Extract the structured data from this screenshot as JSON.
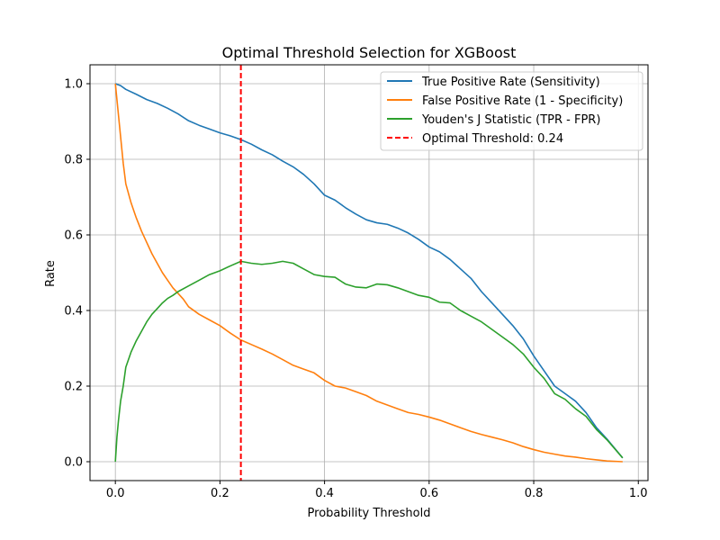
{
  "chart_data": {
    "type": "line",
    "title": "Optimal Threshold Selection for XGBoost",
    "xlabel": "Probability Threshold",
    "ylabel": "Rate",
    "xlim": [
      -0.0485,
      1.0185
    ],
    "ylim": [
      -0.05,
      1.05
    ],
    "xticks": [
      0.0,
      0.2,
      0.4,
      0.6,
      0.8,
      1.0
    ],
    "xtick_labels": [
      "0.0",
      "0.2",
      "0.4",
      "0.6",
      "0.8",
      "1.0"
    ],
    "yticks": [
      0.0,
      0.2,
      0.4,
      0.6,
      0.8,
      1.0
    ],
    "ytick_labels": [
      "0.0",
      "0.2",
      "0.4",
      "0.6",
      "0.8",
      "1.0"
    ],
    "grid": true,
    "legend_position": "top-right",
    "series": [
      {
        "name": "True Positive Rate (Sensitivity)",
        "color": "#1f77b4",
        "style": "solid",
        "x": [
          0.0,
          0.01,
          0.02,
          0.04,
          0.06,
          0.08,
          0.1,
          0.12,
          0.14,
          0.16,
          0.18,
          0.2,
          0.22,
          0.24,
          0.26,
          0.28,
          0.3,
          0.32,
          0.34,
          0.36,
          0.38,
          0.4,
          0.42,
          0.44,
          0.46,
          0.48,
          0.5,
          0.52,
          0.54,
          0.56,
          0.58,
          0.6,
          0.62,
          0.64,
          0.66,
          0.68,
          0.7,
          0.72,
          0.74,
          0.76,
          0.78,
          0.8,
          0.82,
          0.84,
          0.86,
          0.88,
          0.9,
          0.92,
          0.94,
          0.97
        ],
        "y": [
          1.0,
          0.995,
          0.985,
          0.972,
          0.958,
          0.948,
          0.935,
          0.92,
          0.902,
          0.89,
          0.88,
          0.87,
          0.862,
          0.852,
          0.84,
          0.825,
          0.812,
          0.795,
          0.78,
          0.76,
          0.735,
          0.705,
          0.692,
          0.672,
          0.655,
          0.64,
          0.632,
          0.628,
          0.618,
          0.605,
          0.588,
          0.568,
          0.555,
          0.535,
          0.51,
          0.485,
          0.45,
          0.42,
          0.39,
          0.36,
          0.325,
          0.28,
          0.24,
          0.2,
          0.18,
          0.16,
          0.13,
          0.09,
          0.06,
          0.01
        ]
      },
      {
        "name": "False Positive Rate (1 - Specificity)",
        "color": "#ff7f0e",
        "style": "solid",
        "x": [
          0.0,
          0.005,
          0.01,
          0.015,
          0.02,
          0.03,
          0.04,
          0.05,
          0.06,
          0.07,
          0.08,
          0.09,
          0.1,
          0.11,
          0.12,
          0.13,
          0.14,
          0.16,
          0.18,
          0.2,
          0.22,
          0.24,
          0.26,
          0.28,
          0.3,
          0.32,
          0.34,
          0.36,
          0.38,
          0.4,
          0.42,
          0.44,
          0.46,
          0.48,
          0.5,
          0.52,
          0.54,
          0.56,
          0.58,
          0.6,
          0.62,
          0.64,
          0.66,
          0.68,
          0.7,
          0.72,
          0.74,
          0.76,
          0.78,
          0.8,
          0.82,
          0.84,
          0.86,
          0.88,
          0.9,
          0.92,
          0.94,
          0.97
        ],
        "y": [
          1.0,
          0.93,
          0.86,
          0.79,
          0.735,
          0.685,
          0.645,
          0.61,
          0.58,
          0.55,
          0.525,
          0.5,
          0.48,
          0.46,
          0.445,
          0.43,
          0.41,
          0.39,
          0.375,
          0.36,
          0.34,
          0.322,
          0.31,
          0.298,
          0.285,
          0.27,
          0.255,
          0.245,
          0.235,
          0.215,
          0.2,
          0.195,
          0.185,
          0.175,
          0.16,
          0.15,
          0.14,
          0.13,
          0.125,
          0.118,
          0.11,
          0.1,
          0.09,
          0.08,
          0.072,
          0.065,
          0.058,
          0.05,
          0.04,
          0.032,
          0.025,
          0.02,
          0.015,
          0.012,
          0.008,
          0.005,
          0.002,
          0.0
        ]
      },
      {
        "name": "Youden's J Statistic (TPR - FPR)",
        "color": "#2ca02c",
        "style": "solid",
        "x": [
          0.0,
          0.003,
          0.006,
          0.01,
          0.015,
          0.02,
          0.03,
          0.04,
          0.05,
          0.06,
          0.07,
          0.08,
          0.09,
          0.1,
          0.11,
          0.12,
          0.14,
          0.16,
          0.18,
          0.2,
          0.22,
          0.24,
          0.26,
          0.28,
          0.3,
          0.32,
          0.34,
          0.36,
          0.38,
          0.4,
          0.42,
          0.44,
          0.46,
          0.48,
          0.5,
          0.52,
          0.54,
          0.56,
          0.58,
          0.6,
          0.62,
          0.64,
          0.66,
          0.68,
          0.7,
          0.72,
          0.74,
          0.76,
          0.78,
          0.8,
          0.82,
          0.84,
          0.86,
          0.88,
          0.9,
          0.92,
          0.94,
          0.97
        ],
        "y": [
          0.0,
          0.065,
          0.11,
          0.16,
          0.2,
          0.25,
          0.29,
          0.32,
          0.345,
          0.37,
          0.39,
          0.405,
          0.42,
          0.432,
          0.44,
          0.45,
          0.465,
          0.48,
          0.495,
          0.505,
          0.518,
          0.53,
          0.525,
          0.522,
          0.525,
          0.53,
          0.525,
          0.51,
          0.495,
          0.49,
          0.488,
          0.47,
          0.462,
          0.46,
          0.47,
          0.468,
          0.46,
          0.45,
          0.44,
          0.435,
          0.422,
          0.42,
          0.4,
          0.385,
          0.37,
          0.35,
          0.33,
          0.31,
          0.285,
          0.25,
          0.22,
          0.18,
          0.165,
          0.14,
          0.12,
          0.085,
          0.058,
          0.01
        ]
      }
    ],
    "threshold_line": {
      "name": "Optimal Threshold: 0.24",
      "x": 0.24,
      "color": "#ff0000",
      "style": "dashed"
    }
  }
}
